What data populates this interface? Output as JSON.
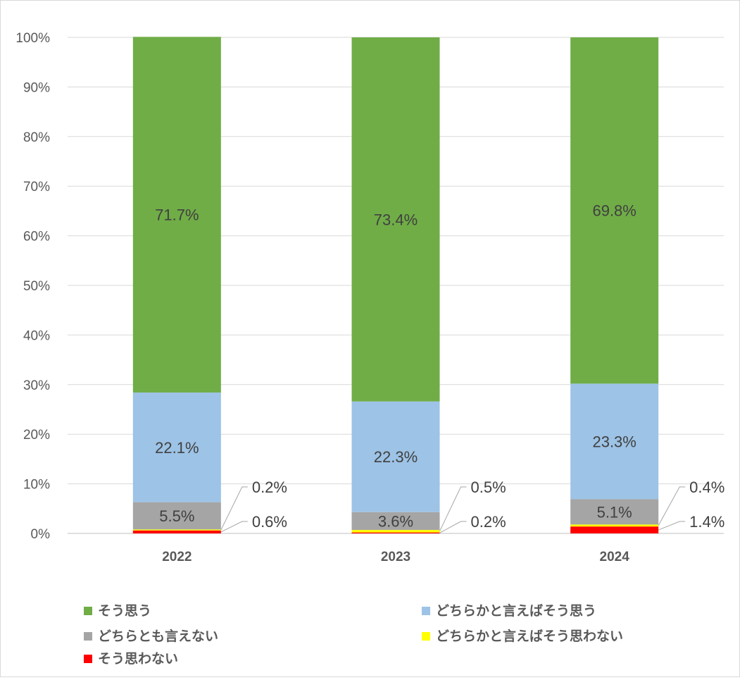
{
  "chart_data": {
    "type": "bar",
    "stacked": true,
    "percent": true,
    "categories": [
      "2022",
      "2023",
      "2024"
    ],
    "series": [
      {
        "name": "そう思わない",
        "color": "#ff0000",
        "values": [
          0.6,
          0.2,
          1.4
        ],
        "labels": [
          "0.6%",
          "0.2%",
          "1.4%"
        ],
        "callout": true
      },
      {
        "name": "どちらかと言えばそう思わない",
        "color": "#ffff00",
        "values": [
          0.2,
          0.5,
          0.4
        ],
        "labels": [
          "0.2%",
          "0.5%",
          "0.4%"
        ],
        "callout": true
      },
      {
        "name": "どちらとも言えない",
        "color": "#a5a5a5",
        "values": [
          5.5,
          3.6,
          5.1
        ],
        "labels": [
          "5.5%",
          "3.6%",
          "5.1%"
        ]
      },
      {
        "name": "どちらかと言えばそう思う",
        "color": "#9dc3e6",
        "values": [
          22.1,
          22.3,
          23.3
        ],
        "labels": [
          "22.1%",
          "22.3%",
          "23.3%"
        ]
      },
      {
        "name": "そう思う",
        "color": "#70ad47",
        "values": [
          71.7,
          73.4,
          69.8
        ],
        "labels": [
          "71.7%",
          "73.4%",
          "69.8%"
        ]
      }
    ],
    "ylim": [
      0,
      100
    ],
    "yticks": [
      "0%",
      "10%",
      "20%",
      "30%",
      "40%",
      "50%",
      "60%",
      "70%",
      "80%",
      "90%",
      "100%"
    ],
    "grid": true,
    "legend_position": "bottom",
    "legend_order": [
      "そう思う",
      "どちらかと言えばそう思う",
      "どちらとも言えない",
      "どちらかと言えばそう思わない",
      "そう思わない"
    ]
  }
}
